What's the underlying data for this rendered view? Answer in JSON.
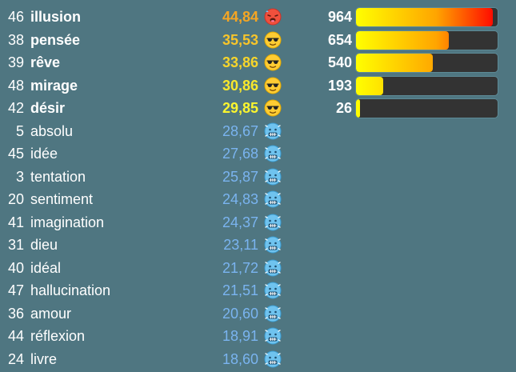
{
  "colors": {
    "background": "#4f7681",
    "cold_score": "#7ab4f0",
    "bar_track": "#333333",
    "bar_gradient_start": "#ffff00",
    "bar_gradient_end": "#ff0000"
  },
  "guesses": [
    {
      "rank": "46",
      "word": "illusion",
      "score": "44,84",
      "score_color": "#f5a623",
      "emoji": "hot-face-icon",
      "count": "964",
      "progress": 0.964,
      "hot": true
    },
    {
      "rank": "38",
      "word": "pensée",
      "score": "35,53",
      "score_color": "#f7c52b",
      "emoji": "sunglasses-face-icon",
      "count": "654",
      "progress": 0.654,
      "hot": true
    },
    {
      "rank": "39",
      "word": "rêve",
      "score": "33,86",
      "score_color": "#f7d52b",
      "emoji": "sunglasses-face-icon",
      "count": "540",
      "progress": 0.54,
      "hot": true
    },
    {
      "rank": "48",
      "word": "mirage",
      "score": "30,86",
      "score_color": "#f9e82c",
      "emoji": "sunglasses-face-icon",
      "count": "193",
      "progress": 0.193,
      "hot": true
    },
    {
      "rank": "42",
      "word": "désir",
      "score": "29,85",
      "score_color": "#fbf52e",
      "emoji": "sunglasses-face-icon",
      "count": "26",
      "progress": 0.026,
      "hot": true
    },
    {
      "rank": "5",
      "word": "absolu",
      "score": "28,67",
      "score_color": "#7ab4f0",
      "emoji": "cold-face-icon",
      "count": "",
      "progress": null,
      "hot": false
    },
    {
      "rank": "45",
      "word": "idée",
      "score": "27,68",
      "score_color": "#7ab4f0",
      "emoji": "cold-face-icon",
      "count": "",
      "progress": null,
      "hot": false
    },
    {
      "rank": "3",
      "word": "tentation",
      "score": "25,87",
      "score_color": "#7ab4f0",
      "emoji": "cold-face-icon",
      "count": "",
      "progress": null,
      "hot": false
    },
    {
      "rank": "20",
      "word": "sentiment",
      "score": "24,83",
      "score_color": "#7ab4f0",
      "emoji": "cold-face-icon",
      "count": "",
      "progress": null,
      "hot": false
    },
    {
      "rank": "41",
      "word": "imagination",
      "score": "24,37",
      "score_color": "#7ab4f0",
      "emoji": "cold-face-icon",
      "count": "",
      "progress": null,
      "hot": false
    },
    {
      "rank": "31",
      "word": "dieu",
      "score": "23,11",
      "score_color": "#7ab4f0",
      "emoji": "cold-face-icon",
      "count": "",
      "progress": null,
      "hot": false
    },
    {
      "rank": "40",
      "word": "idéal",
      "score": "21,72",
      "score_color": "#7ab4f0",
      "emoji": "cold-face-icon",
      "count": "",
      "progress": null,
      "hot": false
    },
    {
      "rank": "47",
      "word": "hallucination",
      "score": "21,51",
      "score_color": "#7ab4f0",
      "emoji": "cold-face-icon",
      "count": "",
      "progress": null,
      "hot": false
    },
    {
      "rank": "36",
      "word": "amour",
      "score": "20,60",
      "score_color": "#7ab4f0",
      "emoji": "cold-face-icon",
      "count": "",
      "progress": null,
      "hot": false
    },
    {
      "rank": "44",
      "word": "réflexion",
      "score": "18,91",
      "score_color": "#7ab4f0",
      "emoji": "cold-face-icon",
      "count": "",
      "progress": null,
      "hot": false
    },
    {
      "rank": "24",
      "word": "livre",
      "score": "18,60",
      "score_color": "#7ab4f0",
      "emoji": "cold-face-icon",
      "count": "",
      "progress": null,
      "hot": false
    }
  ]
}
